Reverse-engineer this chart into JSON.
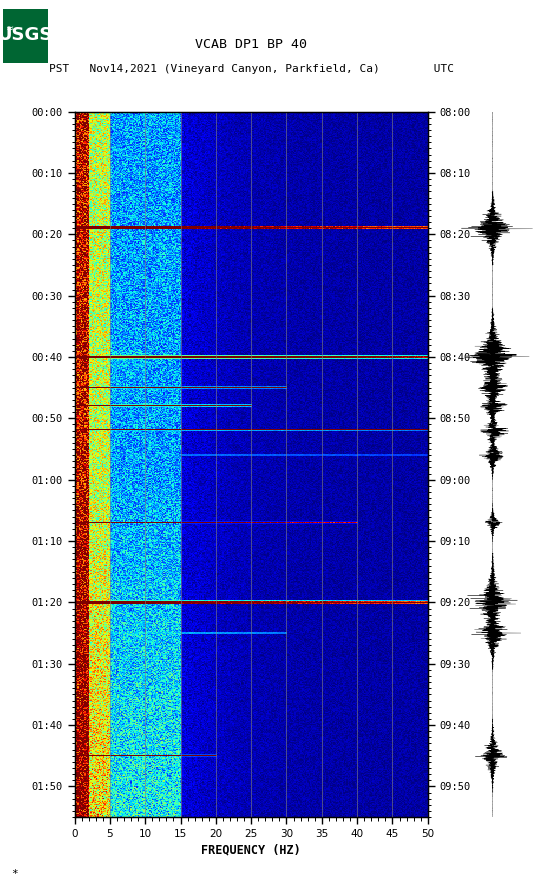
{
  "title_line1": "VCAB DP1 BP 40",
  "title_line2": "PST   Nov14,2021 (Vineyard Canyon, Parkfield, Ca)        UTC",
  "xlabel": "FREQUENCY (HZ)",
  "yticks_pst": [
    "00:00",
    "00:10",
    "00:20",
    "00:30",
    "00:40",
    "00:50",
    "01:00",
    "01:10",
    "01:20",
    "01:30",
    "01:40",
    "01:50"
  ],
  "yticks_utc": [
    "08:00",
    "08:10",
    "08:20",
    "08:30",
    "08:40",
    "08:50",
    "09:00",
    "09:10",
    "09:20",
    "09:30",
    "09:40",
    "09:50"
  ],
  "xticks": [
    0,
    5,
    10,
    15,
    20,
    25,
    30,
    35,
    40,
    45,
    50
  ],
  "vertical_grid_color": "#808080",
  "vertical_grid_lines": [
    5,
    10,
    15,
    20,
    25,
    30,
    35,
    40,
    45
  ],
  "fig_width": 5.52,
  "fig_height": 8.93,
  "dpi": 100,
  "spectrogram_colormap": "jet",
  "usgs_green": "#006633",
  "duration_minutes": 115,
  "seismic_events": [
    {
      "time": 19,
      "amp": 2.5,
      "freq_extent": 50,
      "n_rows": 2
    },
    {
      "time": 40,
      "amp": 3.0,
      "freq_extent": 50,
      "n_rows": 2
    },
    {
      "time": 45,
      "amp": 2.0,
      "freq_extent": 30,
      "n_rows": 1
    },
    {
      "time": 48,
      "amp": 2.5,
      "freq_extent": 25,
      "n_rows": 1
    },
    {
      "time": 52,
      "amp": 2.0,
      "freq_extent": 50,
      "n_rows": 1
    },
    {
      "time": 56,
      "amp": 1.5,
      "freq_extent": 50,
      "n_rows": 1
    },
    {
      "time": 67,
      "amp": 1.0,
      "freq_extent": 40,
      "n_rows": 1
    },
    {
      "time": 80,
      "amp": 2.5,
      "freq_extent": 50,
      "n_rows": 2
    },
    {
      "time": 85,
      "amp": 2.0,
      "freq_extent": 30,
      "n_rows": 1
    },
    {
      "time": 105,
      "amp": 1.5,
      "freq_extent": 20,
      "n_rows": 1
    }
  ],
  "wave_events": [
    {
      "time": 19,
      "amp": 3.5,
      "dur": 1.5
    },
    {
      "time": 40,
      "amp": 4.0,
      "dur": 2.0
    },
    {
      "time": 45,
      "amp": 2.5,
      "dur": 1.0
    },
    {
      "time": 48,
      "amp": 2.0,
      "dur": 1.0
    },
    {
      "time": 52,
      "amp": 2.0,
      "dur": 1.0
    },
    {
      "time": 56,
      "amp": 1.8,
      "dur": 1.0
    },
    {
      "time": 67,
      "amp": 1.2,
      "dur": 0.8
    },
    {
      "time": 80,
      "amp": 3.0,
      "dur": 2.0
    },
    {
      "time": 85,
      "amp": 2.5,
      "dur": 1.5
    },
    {
      "time": 105,
      "amp": 2.0,
      "dur": 1.5
    }
  ]
}
